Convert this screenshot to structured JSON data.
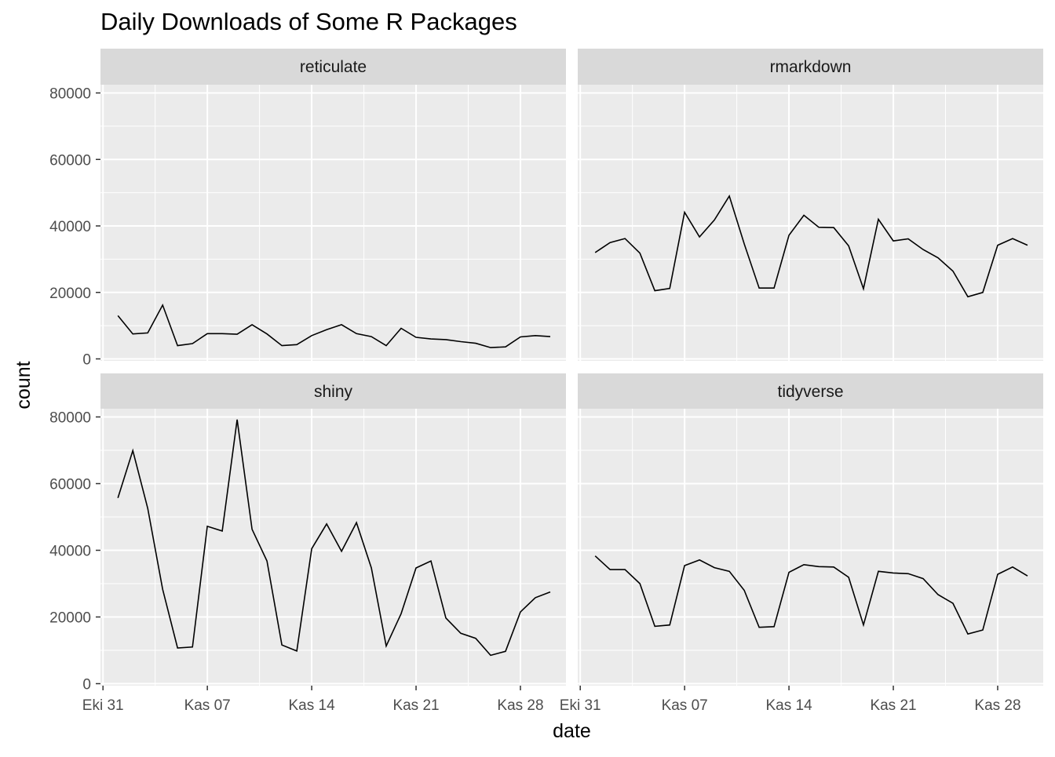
{
  "chart_data": {
    "type": "line",
    "title": "Daily Downloads of Some R Packages",
    "xlabel": "date",
    "ylabel": "count",
    "x_start": "2017-11-01",
    "x_ticks": [
      "Eki 31",
      "Kas 07",
      "Kas 14",
      "Kas 21",
      "Kas 28"
    ],
    "y_ticks": [
      "0",
      "20000",
      "40000",
      "60000",
      "80000"
    ],
    "ylim": [
      0,
      90000
    ],
    "colors": {
      "line": "#000000",
      "panel_bg": "#ebebeb",
      "strip_bg": "#d9d9d9",
      "grid": "#ffffff"
    },
    "panels": [
      {
        "name": "reticulate",
        "values": [
          13000,
          7500,
          7800,
          16200,
          4000,
          4600,
          7600,
          7600,
          7400,
          10300,
          7500,
          4000,
          4300,
          7000,
          8800,
          10300,
          7600,
          6700,
          4000,
          9200,
          6500,
          6000,
          5800,
          5200,
          4700,
          3400,
          3600,
          6600,
          7000,
          6700
        ]
      },
      {
        "name": "rmarkdown",
        "values": [
          32000,
          35000,
          36200,
          31800,
          20500,
          21200,
          44100,
          36700,
          41800,
          49000,
          34600,
          21300,
          21300,
          37200,
          43200,
          39600,
          39500,
          34000,
          21100,
          42000,
          35500,
          36100,
          32900,
          30400,
          26400,
          18700,
          20000,
          34200,
          36200,
          34200
        ]
      },
      {
        "name": "shiny",
        "values": [
          55700,
          69900,
          52600,
          28300,
          10700,
          11000,
          47200,
          45800,
          79200,
          46300,
          36800,
          11600,
          9800,
          40500,
          47900,
          39700,
          48300,
          34700,
          11300,
          21000,
          34700,
          36800,
          19700,
          15100,
          13600,
          8500,
          9700,
          21500,
          25800,
          27500
        ]
      },
      {
        "name": "tidyverse",
        "values": [
          38300,
          34200,
          34200,
          30000,
          17200,
          17600,
          35400,
          37100,
          34800,
          33700,
          28000,
          16900,
          17100,
          33400,
          35700,
          35100,
          35000,
          31900,
          17600,
          33700,
          33200,
          33000,
          31500,
          26700,
          24100,
          14900,
          16100,
          32800,
          35000,
          32300
        ]
      }
    ]
  }
}
